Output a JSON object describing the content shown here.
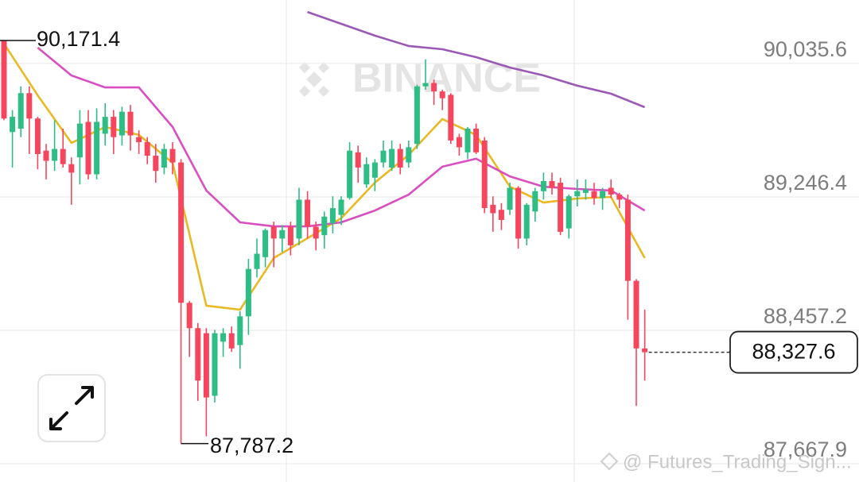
{
  "chart_data": {
    "type": "candlestick",
    "watermark": "BINANCE",
    "footer": "@ Futures_Trading_Sign...",
    "up_color": "#2ebd85",
    "down_color": "#f6465d",
    "grid": true,
    "ylim": [
      87560,
      90411
    ],
    "yticks": [
      {
        "value": 90035.6,
        "label": "90,035.6"
      },
      {
        "value": 89246.4,
        "label": "89,246.4"
      },
      {
        "value": 88457.2,
        "label": "88,457.2"
      },
      {
        "value": 87667.9,
        "label": "87,667.9"
      }
    ],
    "high_marker": {
      "value": 90171.4,
      "label": "90,171.4"
    },
    "low_marker": {
      "value": 87787.2,
      "label": "87,787.2"
    },
    "last_price": {
      "value": 88327.6,
      "label": "88,327.6"
    },
    "open": [
      90171,
      89630,
      89650,
      89860,
      89710,
      89520,
      89460,
      89530,
      89440,
      89480,
      89690,
      89380,
      89620,
      89720,
      89610,
      89750,
      89600,
      89570,
      89490,
      89420,
      89530,
      89450,
      88620,
      88470,
      88440,
      88070,
      88390,
      88440,
      88370,
      88540,
      88820,
      88890,
      89070,
      89000,
      89070,
      89000,
      89230,
      89070,
      89020,
      89090,
      89140,
      89240,
      89510,
      89320,
      89360,
      89450,
      89420,
      89530,
      89450,
      89560,
      89900,
      89920,
      89870,
      89850,
      89600,
      89510,
      89650,
      89580,
      89200,
      89170,
      89170,
      89300,
      89000,
      89160,
      89280,
      89340,
      89330,
      89060,
      89250,
      89270,
      89280,
      89240,
      89300,
      89260,
      89230,
      88750,
      88350
    ],
    "high": [
      90171.4,
      89760,
      89900,
      89900,
      89720,
      89560,
      89700,
      89650,
      89480,
      89760,
      89760,
      89770,
      89800,
      89760,
      89780,
      89790,
      89640,
      89600,
      89560,
      89560,
      89570,
      89470,
      88630,
      88500,
      88470,
      88460,
      88470,
      88480,
      88570,
      88880,
      89000,
      89060,
      89100,
      89080,
      89100,
      89300,
      89280,
      89100,
      89160,
      89250,
      89250,
      89570,
      89550,
      89480,
      89470,
      89580,
      89580,
      89560,
      89580,
      89910,
      90060,
      89940,
      89880,
      89860,
      89620,
      89660,
      89680,
      89600,
      89250,
      89210,
      89330,
      89310,
      89210,
      89300,
      89390,
      89390,
      89360,
      89260,
      89350,
      89350,
      89330,
      89300,
      89350,
      89270,
      89260,
      88760,
      88580
    ],
    "low": [
      89700,
      89420,
      89600,
      89500,
      89410,
      89350,
      89400,
      89420,
      89200,
      89320,
      89350,
      89350,
      89550,
      89500,
      89550,
      89520,
      89500,
      89440,
      89330,
      89380,
      89380,
      87787.2,
      88300,
      88040,
      87830,
      88030,
      88300,
      88330,
      88230,
      88430,
      88770,
      88830,
      88830,
      88920,
      88900,
      88960,
      89000,
      88930,
      88940,
      89030,
      89080,
      89230,
      89330,
      89300,
      89280,
      89420,
      89400,
      89380,
      89420,
      89530,
      89880,
      89790,
      89760,
      89560,
      89490,
      89470,
      89500,
      89150,
      89040,
      89050,
      89140,
      88940,
      88960,
      89100,
      89230,
      89260,
      89020,
      89000,
      89190,
      89230,
      89200,
      89170,
      89240,
      89180,
      88520,
      88010,
      88160
    ],
    "close": [
      89710,
      89720,
      89860,
      89710,
      89500,
      89460,
      89530,
      89440,
      89390,
      89680,
      89380,
      89690,
      89720,
      89600,
      89750,
      89610,
      89570,
      89490,
      89400,
      89530,
      89450,
      88620,
      88470,
      88160,
      88060,
      88440,
      88440,
      88350,
      88540,
      88820,
      88910,
      89050,
      89000,
      89050,
      88960,
      89230,
      89070,
      89000,
      89130,
      89180,
      89230,
      89520,
      89420,
      89440,
      89450,
      89520,
      89530,
      89420,
      89540,
      89900,
      89920,
      89870,
      89830,
      89580,
      89540,
      89650,
      89510,
      89180,
      89150,
      89110,
      89300,
      89000,
      89200,
      89280,
      89340,
      89300,
      89040,
      89250,
      89280,
      89290,
      89240,
      89280,
      89260,
      89230,
      88750,
      88350,
      88327.6
    ],
    "moving_averages": [
      {
        "color": "#e8b923",
        "x": [
          0,
          4,
          8,
          12,
          16,
          20,
          24,
          28,
          32,
          36,
          40,
          44,
          48,
          52,
          56,
          60,
          64,
          68,
          72,
          76
        ],
        "values": [
          90153,
          89847,
          89566,
          89660,
          89613,
          89448,
          88603,
          88579,
          88885,
          89002,
          89120,
          89331,
          89495,
          89707,
          89613,
          89307,
          89213,
          89237,
          89246,
          88885
        ]
      },
      {
        "color": "#d94fc0",
        "x": [
          4,
          8,
          12,
          16,
          20,
          24,
          28,
          32,
          36,
          40,
          44,
          48,
          52,
          56,
          60,
          64,
          68,
          72,
          76
        ],
        "values": [
          90129,
          89965,
          89894,
          89894,
          89660,
          89284,
          89096,
          89072,
          89072,
          89096,
          89166,
          89260,
          89425,
          89472,
          89368,
          89307,
          89293,
          89284,
          89166
        ]
      },
      {
        "color": "#9b59b6",
        "x": [
          36,
          40,
          44,
          48,
          52,
          56,
          60,
          64,
          68,
          72,
          76
        ],
        "values": [
          90340,
          90270,
          90200,
          90139,
          90120,
          90073,
          90012,
          89965,
          89904,
          89857,
          89777
        ]
      }
    ]
  }
}
